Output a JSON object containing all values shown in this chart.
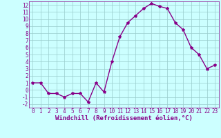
{
  "x": [
    0,
    1,
    2,
    3,
    4,
    5,
    6,
    7,
    8,
    9,
    10,
    11,
    12,
    13,
    14,
    15,
    16,
    17,
    18,
    19,
    20,
    21,
    22,
    23
  ],
  "y": [
    1,
    1,
    -0.5,
    -0.5,
    -1,
    -0.5,
    -0.5,
    -1.7,
    1,
    -0.3,
    4,
    7.5,
    9.5,
    10.5,
    11.5,
    12.2,
    11.8,
    11.5,
    9.5,
    8.5,
    6,
    5,
    3,
    3.5
  ],
  "line_color": "#880088",
  "bg_color": "#ccffff",
  "grid_color": "#99cccc",
  "xlabel": "Windchill (Refroidissement éolien,°C)",
  "tick_color": "#880088",
  "ylim": [
    -2.5,
    12.5
  ],
  "xlim": [
    -0.5,
    23.5
  ],
  "yticks": [
    -2,
    -1,
    0,
    1,
    2,
    3,
    4,
    5,
    6,
    7,
    8,
    9,
    10,
    11,
    12
  ],
  "xticks": [
    0,
    1,
    2,
    3,
    4,
    5,
    6,
    7,
    8,
    9,
    10,
    11,
    12,
    13,
    14,
    15,
    16,
    17,
    18,
    19,
    20,
    21,
    22,
    23
  ],
  "marker": "*",
  "marker_size": 3,
  "line_width": 1.0,
  "font_size": 5.5,
  "xlabel_fontsize": 6.5
}
